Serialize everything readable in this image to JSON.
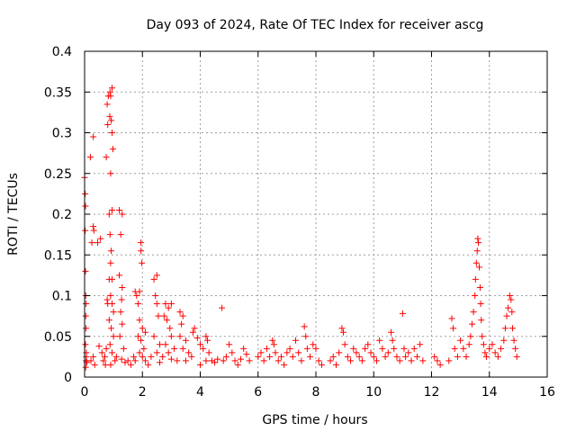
{
  "chart_data": {
    "type": "scatter",
    "title": "Day 093 of 2024, Rate Of TEC Index for receiver ascg",
    "xlabel": "GPS time / hours",
    "ylabel": "ROTI / TECUs",
    "xlim": [
      0,
      16
    ],
    "ylim": [
      0,
      0.4
    ],
    "x_ticks": [
      0,
      2,
      4,
      6,
      8,
      10,
      12,
      14,
      16
    ],
    "x_tick_labels": [
      "0",
      "2",
      "4",
      "6",
      "8",
      "10",
      "12",
      "14",
      "16"
    ],
    "y_ticks": [
      0,
      0.05,
      0.1,
      0.15,
      0.2,
      0.25,
      0.3,
      0.35,
      0.4
    ],
    "y_tick_labels": [
      "0",
      "0.05",
      "0.1",
      "0.15",
      "0.2",
      "0.25",
      "0.3",
      "0.35",
      "0.4"
    ],
    "grid": true,
    "marker": "+",
    "series": [
      {
        "name": "ROTI",
        "color": "#ff0000",
        "points": [
          [
            0.0,
            0.245
          ],
          [
            0.02,
            0.225
          ],
          [
            0.03,
            0.21
          ],
          [
            0.02,
            0.18
          ],
          [
            0.03,
            0.13
          ],
          [
            0.04,
            0.1
          ],
          [
            0.05,
            0.09
          ],
          [
            0.04,
            0.075
          ],
          [
            0.05,
            0.06
          ],
          [
            0.03,
            0.04
          ],
          [
            0.06,
            0.03
          ],
          [
            0.05,
            0.02
          ],
          [
            0.04,
            0.012
          ],
          [
            0.08,
            0.018
          ],
          [
            0.06,
            0.025
          ],
          [
            0.2,
            0.27
          ],
          [
            0.3,
            0.295
          ],
          [
            0.3,
            0.185
          ],
          [
            0.32,
            0.18
          ],
          [
            0.25,
            0.165
          ],
          [
            0.22,
            0.02
          ],
          [
            0.3,
            0.025
          ],
          [
            0.35,
            0.015
          ],
          [
            0.45,
            0.165
          ],
          [
            0.55,
            0.17
          ],
          [
            0.5,
            0.038
          ],
          [
            0.6,
            0.03
          ],
          [
            0.65,
            0.02
          ],
          [
            0.7,
            0.025
          ],
          [
            0.72,
            0.015
          ],
          [
            0.75,
            0.035
          ],
          [
            0.8,
            0.09
          ],
          [
            0.78,
            0.095
          ],
          [
            0.75,
            0.27
          ],
          [
            0.8,
            0.31
          ],
          [
            0.78,
            0.335
          ],
          [
            0.82,
            0.345
          ],
          [
            0.88,
            0.35
          ],
          [
            0.9,
            0.345
          ],
          [
            0.95,
            0.355
          ],
          [
            0.87,
            0.32
          ],
          [
            0.92,
            0.315
          ],
          [
            0.95,
            0.3
          ],
          [
            0.98,
            0.28
          ],
          [
            0.9,
            0.25
          ],
          [
            0.85,
            0.2
          ],
          [
            0.95,
            0.205
          ],
          [
            0.88,
            0.175
          ],
          [
            0.92,
            0.155
          ],
          [
            0.9,
            0.14
          ],
          [
            0.95,
            0.12
          ],
          [
            0.85,
            0.12
          ],
          [
            0.9,
            0.1
          ],
          [
            0.95,
            0.09
          ],
          [
            1.0,
            0.08
          ],
          [
            0.85,
            0.07
          ],
          [
            0.92,
            0.06
          ],
          [
            1.0,
            0.05
          ],
          [
            0.88,
            0.04
          ],
          [
            0.95,
            0.03
          ],
          [
            1.05,
            0.02
          ],
          [
            0.9,
            0.015
          ],
          [
            1.1,
            0.025
          ],
          [
            1.2,
            0.205
          ],
          [
            1.3,
            0.2
          ],
          [
            1.25,
            0.175
          ],
          [
            1.2,
            0.125
          ],
          [
            1.3,
            0.11
          ],
          [
            1.28,
            0.095
          ],
          [
            1.25,
            0.08
          ],
          [
            1.3,
            0.065
          ],
          [
            1.22,
            0.05
          ],
          [
            1.35,
            0.035
          ],
          [
            1.28,
            0.022
          ],
          [
            1.4,
            0.018
          ],
          [
            1.5,
            0.02
          ],
          [
            1.6,
            0.015
          ],
          [
            1.7,
            0.025
          ],
          [
            1.75,
            0.02
          ],
          [
            1.75,
            0.105
          ],
          [
            1.8,
            0.1
          ],
          [
            1.85,
            0.09
          ],
          [
            1.9,
            0.105
          ],
          [
            1.95,
            0.165
          ],
          [
            1.95,
            0.155
          ],
          [
            1.98,
            0.14
          ],
          [
            1.9,
            0.07
          ],
          [
            2.0,
            0.06
          ],
          [
            1.85,
            0.05
          ],
          [
            1.95,
            0.045
          ],
          [
            2.05,
            0.035
          ],
          [
            2.1,
            0.055
          ],
          [
            1.9,
            0.03
          ],
          [
            2.0,
            0.025
          ],
          [
            2.1,
            0.02
          ],
          [
            2.2,
            0.015
          ],
          [
            2.3,
            0.025
          ],
          [
            2.4,
            0.12
          ],
          [
            2.5,
            0.125
          ],
          [
            2.45,
            0.1
          ],
          [
            2.5,
            0.09
          ],
          [
            2.55,
            0.075
          ],
          [
            2.4,
            0.05
          ],
          [
            2.6,
            0.04
          ],
          [
            2.5,
            0.03
          ],
          [
            2.7,
            0.025
          ],
          [
            2.6,
            0.018
          ],
          [
            2.8,
            0.09
          ],
          [
            2.9,
            0.085
          ],
          [
            3.0,
            0.09
          ],
          [
            2.75,
            0.075
          ],
          [
            2.85,
            0.07
          ],
          [
            2.95,
            0.06
          ],
          [
            3.0,
            0.05
          ],
          [
            2.8,
            0.04
          ],
          [
            3.1,
            0.035
          ],
          [
            2.9,
            0.03
          ],
          [
            3.0,
            0.022
          ],
          [
            3.2,
            0.02
          ],
          [
            3.3,
            0.08
          ],
          [
            3.4,
            0.075
          ],
          [
            3.35,
            0.065
          ],
          [
            3.3,
            0.05
          ],
          [
            3.5,
            0.045
          ],
          [
            3.4,
            0.035
          ],
          [
            3.6,
            0.03
          ],
          [
            3.5,
            0.02
          ],
          [
            3.7,
            0.025
          ],
          [
            3.8,
            0.06
          ],
          [
            3.75,
            0.055
          ],
          [
            3.9,
            0.048
          ],
          [
            4.0,
            0.04
          ],
          [
            4.1,
            0.035
          ],
          [
            4.2,
            0.05
          ],
          [
            4.25,
            0.045
          ],
          [
            4.3,
            0.03
          ],
          [
            4.2,
            0.02
          ],
          [
            4.0,
            0.015
          ],
          [
            4.4,
            0.02
          ],
          [
            4.5,
            0.018
          ],
          [
            4.6,
            0.022
          ],
          [
            4.75,
            0.085
          ],
          [
            4.8,
            0.02
          ],
          [
            4.9,
            0.025
          ],
          [
            5.0,
            0.04
          ],
          [
            5.1,
            0.03
          ],
          [
            5.2,
            0.02
          ],
          [
            5.3,
            0.015
          ],
          [
            5.4,
            0.022
          ],
          [
            5.5,
            0.035
          ],
          [
            5.6,
            0.028
          ],
          [
            5.7,
            0.02
          ],
          [
            6.0,
            0.025
          ],
          [
            6.1,
            0.03
          ],
          [
            6.2,
            0.02
          ],
          [
            6.3,
            0.035
          ],
          [
            6.4,
            0.025
          ],
          [
            6.5,
            0.045
          ],
          [
            6.55,
            0.04
          ],
          [
            6.6,
            0.03
          ],
          [
            6.7,
            0.02
          ],
          [
            6.8,
            0.025
          ],
          [
            6.9,
            0.015
          ],
          [
            7.0,
            0.03
          ],
          [
            7.1,
            0.035
          ],
          [
            7.2,
            0.025
          ],
          [
            7.3,
            0.045
          ],
          [
            7.4,
            0.03
          ],
          [
            7.5,
            0.02
          ],
          [
            7.6,
            0.062
          ],
          [
            7.65,
            0.05
          ],
          [
            7.7,
            0.035
          ],
          [
            7.8,
            0.025
          ],
          [
            7.9,
            0.04
          ],
          [
            8.0,
            0.035
          ],
          [
            8.1,
            0.02
          ],
          [
            8.2,
            0.015
          ],
          [
            8.5,
            0.02
          ],
          [
            8.6,
            0.025
          ],
          [
            8.7,
            0.015
          ],
          [
            8.8,
            0.03
          ],
          [
            8.9,
            0.06
          ],
          [
            8.95,
            0.055
          ],
          [
            9.0,
            0.04
          ],
          [
            9.1,
            0.025
          ],
          [
            9.2,
            0.02
          ],
          [
            9.3,
            0.035
          ],
          [
            9.4,
            0.03
          ],
          [
            9.5,
            0.025
          ],
          [
            9.6,
            0.02
          ],
          [
            9.7,
            0.035
          ],
          [
            9.8,
            0.04
          ],
          [
            9.9,
            0.03
          ],
          [
            10.0,
            0.025
          ],
          [
            10.1,
            0.02
          ],
          [
            10.2,
            0.045
          ],
          [
            10.3,
            0.035
          ],
          [
            10.4,
            0.025
          ],
          [
            10.5,
            0.03
          ],
          [
            10.6,
            0.055
          ],
          [
            10.65,
            0.045
          ],
          [
            10.7,
            0.035
          ],
          [
            10.8,
            0.025
          ],
          [
            10.9,
            0.02
          ],
          [
            11.0,
            0.078
          ],
          [
            11.05,
            0.035
          ],
          [
            11.1,
            0.025
          ],
          [
            11.2,
            0.03
          ],
          [
            11.3,
            0.02
          ],
          [
            11.4,
            0.035
          ],
          [
            11.5,
            0.025
          ],
          [
            11.6,
            0.04
          ],
          [
            11.7,
            0.02
          ],
          [
            12.1,
            0.025
          ],
          [
            12.2,
            0.02
          ],
          [
            12.3,
            0.015
          ],
          [
            12.6,
            0.02
          ],
          [
            12.7,
            0.072
          ],
          [
            12.75,
            0.06
          ],
          [
            12.8,
            0.035
          ],
          [
            12.9,
            0.025
          ],
          [
            13.0,
            0.045
          ],
          [
            13.1,
            0.035
          ],
          [
            13.2,
            0.025
          ],
          [
            13.3,
            0.04
          ],
          [
            13.35,
            0.05
          ],
          [
            13.4,
            0.065
          ],
          [
            13.45,
            0.08
          ],
          [
            13.5,
            0.1
          ],
          [
            13.52,
            0.12
          ],
          [
            13.55,
            0.14
          ],
          [
            13.58,
            0.155
          ],
          [
            13.6,
            0.17
          ],
          [
            13.62,
            0.165
          ],
          [
            13.65,
            0.135
          ],
          [
            13.68,
            0.11
          ],
          [
            13.7,
            0.09
          ],
          [
            13.72,
            0.07
          ],
          [
            13.75,
            0.05
          ],
          [
            13.8,
            0.04
          ],
          [
            13.85,
            0.03
          ],
          [
            13.9,
            0.025
          ],
          [
            14.0,
            0.035
          ],
          [
            14.1,
            0.04
          ],
          [
            14.2,
            0.03
          ],
          [
            14.3,
            0.025
          ],
          [
            14.4,
            0.035
          ],
          [
            14.5,
            0.045
          ],
          [
            14.55,
            0.06
          ],
          [
            14.6,
            0.075
          ],
          [
            14.65,
            0.085
          ],
          [
            14.7,
            0.1
          ],
          [
            14.75,
            0.095
          ],
          [
            14.78,
            0.08
          ],
          [
            14.8,
            0.06
          ],
          [
            14.85,
            0.045
          ],
          [
            14.9,
            0.035
          ],
          [
            14.95,
            0.025
          ]
        ]
      }
    ]
  }
}
